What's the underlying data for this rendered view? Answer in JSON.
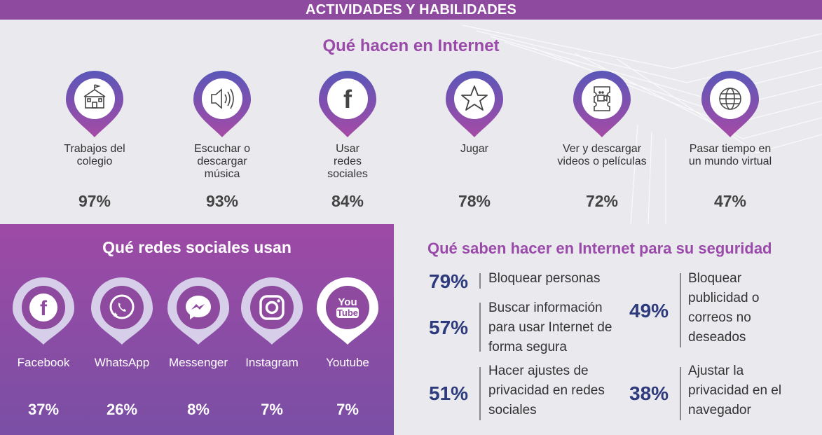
{
  "banner": {
    "title": "ACTIVIDADES Y HABILIDADES"
  },
  "internet": {
    "title": "Qué hacen en Internet",
    "activities": [
      {
        "label": "Trabajos del colegio",
        "percent": "97%",
        "icon": "school-icon"
      },
      {
        "label": "Escuchar o descargar música",
        "percent": "93%",
        "icon": "speaker-icon"
      },
      {
        "label": "Usar redes sociales",
        "percent": "84%",
        "icon": "facebook-icon"
      },
      {
        "label": "Jugar",
        "percent": "78%",
        "icon": "star-icon"
      },
      {
        "label": "Ver y descargar videos o películas",
        "percent": "72%",
        "icon": "video-ticket-icon"
      },
      {
        "label": "Pasar tiempo en un mundo virtual",
        "percent": "47%",
        "icon": "globe-icon"
      }
    ]
  },
  "social": {
    "title": "Qué redes sociales usan",
    "networks": [
      {
        "label": "Facebook",
        "percent": "37%",
        "icon": "facebook-icon"
      },
      {
        "label": "WhatsApp",
        "percent": "26%",
        "icon": "whatsapp-icon"
      },
      {
        "label": "Messenger",
        "percent": "8%",
        "icon": "messenger-icon"
      },
      {
        "label": "Instagram",
        "percent": "7%",
        "icon": "instagram-icon"
      },
      {
        "label": "Youtube",
        "percent": "7%",
        "icon": "youtube-icon"
      }
    ]
  },
  "security": {
    "title": "Qué saben hacer en Internet para su seguridad",
    "skills": [
      {
        "percent": "79%",
        "label": "Bloquear personas"
      },
      {
        "percent": "57%",
        "label": "Buscar información para usar Internet de forma segura"
      },
      {
        "percent": "51%",
        "label": "Hacer ajustes de privacidad en redes sociales"
      },
      {
        "percent": "49%",
        "label": "Bloquear publicidad o correos no deseados"
      },
      {
        "percent": "38%",
        "label": "Ajustar la privacidad en el navegador"
      }
    ]
  },
  "colors": {
    "purple": "#8e4a9e",
    "title_purple": "#9a4aa9",
    "navy": "#2d3a7c",
    "background": "#e9e9ee"
  }
}
